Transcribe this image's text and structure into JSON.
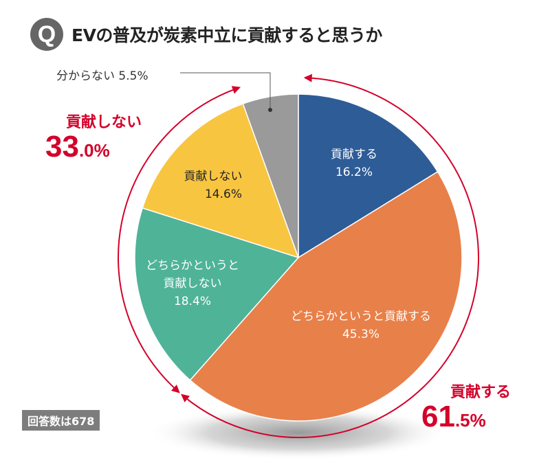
{
  "title": {
    "badge": "Q",
    "text": "EVの普及が炭素中立に貢献すると思うか"
  },
  "respondents": "回答数は678",
  "colors": {
    "accent": "#d4002a"
  },
  "chart_data": {
    "type": "pie",
    "start": "top",
    "direction": "clockwise",
    "slices": [
      {
        "label": "貢献する",
        "value": 16.2,
        "display": "16.2%",
        "color": "#2e5c97"
      },
      {
        "label": "どちらかというと貢献する",
        "value": 45.3,
        "display": "45.3%",
        "color": "#e8804a"
      },
      {
        "label_lines": [
          "どちらかというと",
          "貢献しない"
        ],
        "label": "どちらかというと貢献しない",
        "value": 18.4,
        "display": "18.4%",
        "color": "#4fb398"
      },
      {
        "label": "貢献しない",
        "value": 14.6,
        "display": "14.6%",
        "color": "#f8c541"
      },
      {
        "label": "分からない",
        "value": 5.5,
        "display": "5.5%",
        "color": "#9a9a9a",
        "callout": "分からない 5.5%"
      }
    ],
    "groups": [
      {
        "label": "貢献する",
        "value": 61.5,
        "int": "61",
        "dec": ".5%"
      },
      {
        "label": "貢献しない",
        "value": 33.0,
        "int": "33",
        "dec": ".0%"
      }
    ]
  }
}
